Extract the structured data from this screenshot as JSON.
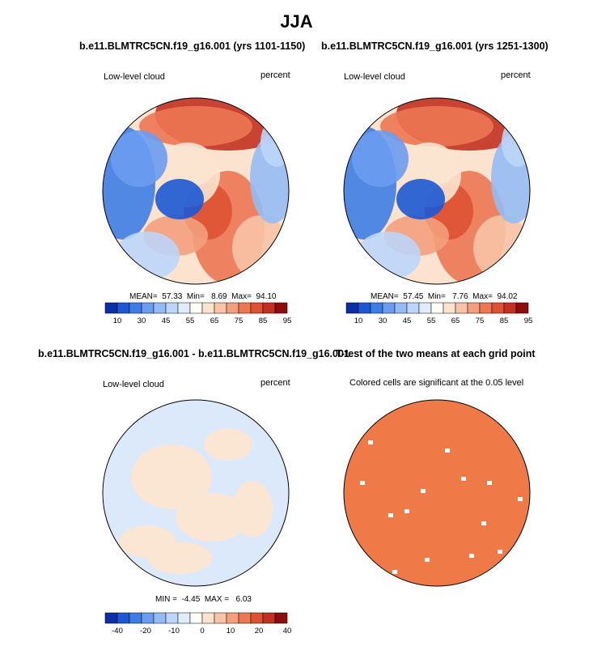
{
  "page_title": "JJA",
  "chart_data": [
    {
      "type": "heatmap",
      "title": "b.e11.BLMTRC5CN.f19_g16.001 (yrs 1101-1150)",
      "left_label": "Low-level cloud",
      "right_label": "percent",
      "stats": {
        "text": "MEAN=  57.33  Min=   8.69  Max=  94.10",
        "mean": 57.33,
        "min": 8.69,
        "max": 94.1
      },
      "colorbar": {
        "ticks": [
          "10",
          "30",
          "45",
          "55",
          "65",
          "75",
          "85",
          "95"
        ],
        "colors": [
          "#0c2fa6",
          "#1c58d3",
          "#3d7de6",
          "#6a9cef",
          "#95bbf4",
          "#bdd5f9",
          "#e1ecfb",
          "#fdfcf6",
          "#fbe3cf",
          "#f8c3a6",
          "#f39f7d",
          "#ec7753",
          "#dd5233",
          "#c23120",
          "#8f0c0c"
        ]
      }
    },
    {
      "type": "heatmap",
      "title": "b.e11.BLMTRC5CN.f19_g16.001 (yrs 1251-1300)",
      "left_label": "Low-level cloud",
      "right_label": "percent",
      "stats": {
        "text": "MEAN=  57.45  Min=   7.76  Max=  94.02",
        "mean": 57.45,
        "min": 7.76,
        "max": 94.02
      },
      "colorbar": {
        "ticks": [
          "10",
          "30",
          "45",
          "55",
          "65",
          "75",
          "85",
          "95"
        ],
        "colors": [
          "#0c2fa6",
          "#1c58d3",
          "#3d7de6",
          "#6a9cef",
          "#95bbf4",
          "#bdd5f9",
          "#e1ecfb",
          "#fdfcf6",
          "#fbe3cf",
          "#f8c3a6",
          "#f39f7d",
          "#ec7753",
          "#dd5233",
          "#c23120",
          "#8f0c0c"
        ]
      }
    },
    {
      "type": "heatmap",
      "title": "b.e11.BLMTRC5CN.f19_g16.001 - b.e11.BLMTRC5CN.f19_g16.001",
      "left_label": "Low-level cloud",
      "right_label": "percent",
      "stats": {
        "text": "MIN =  -4.45  MAX =   6.03",
        "min": -4.45,
        "max": 6.03
      },
      "colorbar": {
        "ticks": [
          "-40",
          "-20",
          "-10",
          "0",
          "10",
          "20",
          "40"
        ],
        "colors": [
          "#0c2fa6",
          "#1c58d3",
          "#3d7de6",
          "#6a9cef",
          "#95bbf4",
          "#bdd5f9",
          "#e1ecfb",
          "#fdfcf6",
          "#fbe3cf",
          "#f8c3a6",
          "#f39f7d",
          "#ec7753",
          "#dd5233",
          "#c23120",
          "#8f0c0c"
        ]
      }
    },
    {
      "type": "heatmap",
      "title": "T-test of the two means at each grid point",
      "left_label": "Colored cells are significant at the 0.05 level"
    }
  ]
}
